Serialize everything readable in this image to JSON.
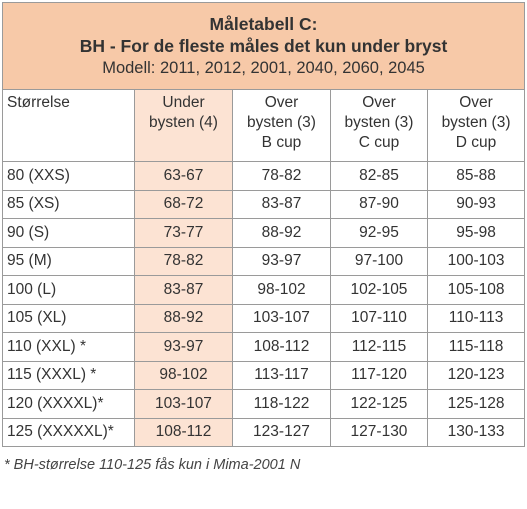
{
  "title": {
    "line1": "Måletabell C:",
    "line2": "BH - For de fleste måles det kun under bryst",
    "line3": "Modell: 2011, 2012, 2001, 2040, 2060, 2045"
  },
  "headers": [
    {
      "lines": [
        "Størrelse"
      ]
    },
    {
      "lines": [
        "Under",
        "bysten (4)"
      ]
    },
    {
      "lines": [
        "Over",
        "bysten (3)",
        "B cup"
      ]
    },
    {
      "lines": [
        "Over",
        "bysten (3)",
        "C cup"
      ]
    },
    {
      "lines": [
        "Over",
        "bysten (3)",
        "D cup"
      ]
    }
  ],
  "rows": [
    [
      "80 (XXS)",
      "63-67",
      "78-82",
      "82-85",
      "85-88"
    ],
    [
      "85 (XS)",
      "68-72",
      "83-87",
      "87-90",
      "90-93"
    ],
    [
      "90 (S)",
      "73-77",
      "88-92",
      "92-95",
      "95-98"
    ],
    [
      "95 (M)",
      "78-82",
      "93-97",
      "97-100",
      "100-103"
    ],
    [
      "100 (L)",
      "83-87",
      "98-102",
      "102-105",
      "105-108"
    ],
    [
      "105 (XL)",
      "88-92",
      "103-107",
      "107-110",
      "110-113"
    ],
    [
      "110 (XXL) *",
      "93-97",
      "108-112",
      "112-115",
      "115-118"
    ],
    [
      "115 (XXXL) *",
      "98-102",
      "113-117",
      "117-120",
      "120-123"
    ],
    [
      "120 (XXXXL)*",
      "103-107",
      "118-122",
      "122-125",
      "125-128"
    ],
    [
      "125 (XXXXXL)*",
      "108-112",
      "123-127",
      "127-130",
      "130-133"
    ]
  ],
  "footnote": "* BH-størrelse 110-125  fås kun i Mima-2001 N",
  "colors": {
    "title_bg": "#f7c9a8",
    "highlight_bg": "#fce3d3",
    "border": "#9a9a9a"
  }
}
